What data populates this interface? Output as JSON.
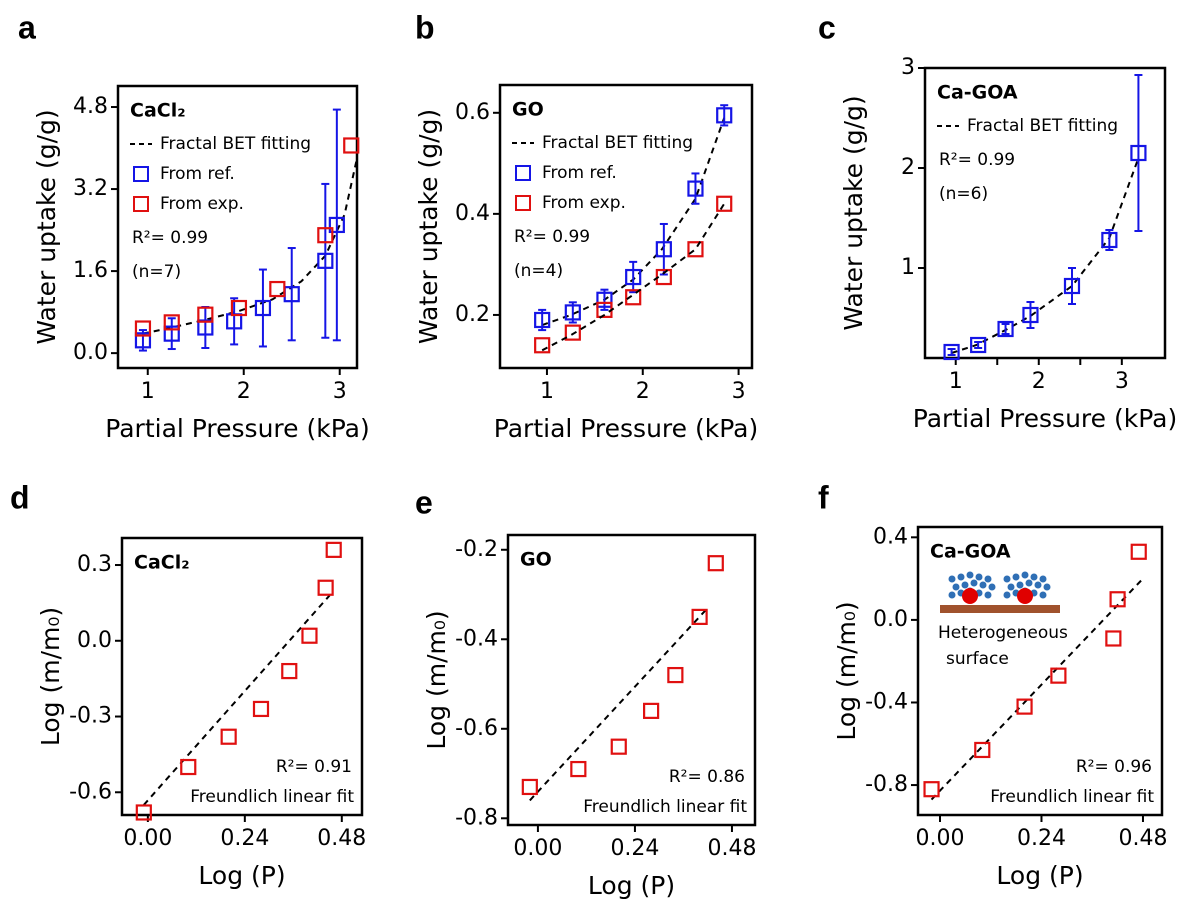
{
  "chart_data": [
    {
      "type": "scatter",
      "panel": "a",
      "title": "CaCl₂",
      "xlabel": "Partial Pressure (kPa)",
      "ylabel": "Water uptake (g/g)",
      "xlim": [
        0.69,
        3.18
      ],
      "ylim": [
        -0.29,
        5.21
      ],
      "xticks": [
        1,
        2,
        3
      ],
      "yticks": [
        {
          "value": 0,
          "label": "0.0"
        },
        1.6,
        3.2,
        4.8
      ],
      "series": [
        {
          "name": "Fractal BET fitting",
          "style": "dashed",
          "color": "#000000",
          "x": [
            0.95,
            1.25,
            1.6,
            1.95,
            2.3,
            2.6,
            2.85,
            3.05,
            3.18
          ],
          "values": [
            0.38,
            0.5,
            0.65,
            0.82,
            1.05,
            1.4,
            1.9,
            2.7,
            3.8
          ]
        },
        {
          "name": "From ref.",
          "style": "marker",
          "color": "#1515e6",
          "x": [
            0.95,
            1.25,
            1.6,
            1.9,
            2.2,
            2.5,
            2.85,
            2.97
          ],
          "values": [
            0.25,
            0.38,
            0.5,
            0.62,
            0.88,
            1.15,
            1.8,
            2.5
          ],
          "errors": [
            0.2,
            0.3,
            0.4,
            0.45,
            0.75,
            0.9,
            1.5,
            2.25
          ]
        },
        {
          "name": "From exp.",
          "style": "marker",
          "color": "#e01010",
          "x": [
            0.95,
            1.25,
            1.6,
            1.95,
            2.35,
            2.85,
            3.12
          ],
          "values": [
            0.48,
            0.6,
            0.75,
            0.88,
            1.25,
            2.3,
            4.05
          ]
        }
      ],
      "annotations": [
        "R²= 0.99",
        "(n=7)"
      ]
    },
    {
      "type": "scatter",
      "panel": "b",
      "title": "GO",
      "xlabel": "Partial Pressure (kPa)",
      "ylabel": "Water uptake (g/g)",
      "xlim": [
        0.51,
        3.14
      ],
      "ylim": [
        0.095,
        0.655
      ],
      "xticks": [
        1,
        2,
        3
      ],
      "yticks": [
        0.2,
        0.4,
        0.6
      ],
      "series": [
        {
          "name": "Fractal BET fitting",
          "style": "dashed",
          "color": "#000000",
          "x": [
            0.95,
            1.25,
            1.6,
            1.9,
            2.2,
            2.55,
            2.85
          ],
          "values": [
            0.18,
            0.2,
            0.23,
            0.27,
            0.33,
            0.43,
            0.59
          ]
        },
        {
          "name": "From ref.",
          "style": "marker",
          "color": "#1515e6",
          "x": [
            0.95,
            1.27,
            1.6,
            1.9,
            2.22,
            2.55,
            2.85
          ],
          "values": [
            0.19,
            0.205,
            0.23,
            0.275,
            0.33,
            0.45,
            0.595
          ],
          "errors": [
            0.02,
            0.02,
            0.02,
            0.03,
            0.05,
            0.03,
            0.02
          ]
        },
        {
          "name": "From exp.",
          "style": "marker",
          "color": "#e01010",
          "x": [
            0.95,
            1.27,
            1.6,
            1.9,
            2.22,
            2.55,
            2.85
          ],
          "values": [
            0.14,
            0.165,
            0.21,
            0.235,
            0.275,
            0.33,
            0.42
          ]
        },
        {
          "style": "dashed",
          "color": "#000000",
          "x": [
            0.95,
            1.25,
            1.6,
            1.9,
            2.2,
            2.55,
            2.85
          ],
          "values": [
            0.13,
            0.16,
            0.2,
            0.24,
            0.28,
            0.33,
            0.42
          ]
        }
      ],
      "annotations": [
        "R²= 0.99",
        "(n=4)"
      ]
    },
    {
      "type": "scatter",
      "panel": "c",
      "title": "Ca-GOA",
      "xlabel": "Partial Pressure (kPa)",
      "ylabel": "Water uptake (g/g)",
      "xlim": [
        0.63,
        3.52
      ],
      "ylim": [
        0.1,
        3.0
      ],
      "xticks": [
        1,
        1.5,
        2,
        2.5,
        3
      ],
      "xticklabels_shown": [
        true,
        false,
        true,
        false,
        true
      ],
      "yticks": [
        1,
        2,
        3
      ],
      "series": [
        {
          "name": "Fractal BET fitting",
          "style": "dashed",
          "color": "#000000",
          "x": [
            0.95,
            1.25,
            1.6,
            1.9,
            2.4,
            2.85,
            3.2
          ],
          "values": [
            0.15,
            0.23,
            0.38,
            0.52,
            0.82,
            1.3,
            2.1
          ]
        },
        {
          "style": "marker",
          "color": "#1515e6",
          "x": [
            0.95,
            1.27,
            1.6,
            1.9,
            2.4,
            2.85,
            3.2
          ],
          "values": [
            0.16,
            0.23,
            0.39,
            0.53,
            0.82,
            1.28,
            2.15
          ],
          "errors": [
            0.03,
            0.03,
            0.05,
            0.13,
            0.18,
            0.1,
            0.78
          ]
        }
      ],
      "annotations": [
        "R²= 0.99",
        "(n=6)"
      ]
    },
    {
      "type": "scatter",
      "panel": "d",
      "title": "CaCl₂",
      "xlabel": "Log (P)",
      "ylabel": "Log (m/m₀)",
      "xlim": [
        -0.064,
        0.53
      ],
      "ylim": [
        -0.69,
        0.407
      ],
      "xticks": [
        {
          "value": 0,
          "label": "0.00"
        },
        0.24,
        0.48
      ],
      "yticks": [
        -0.6,
        -0.3,
        {
          "value": 0,
          "label": "0.0"
        },
        0.3
      ],
      "series": [
        {
          "name": "Freundlich linear fit",
          "style": "dashed",
          "color": "#000000",
          "x": [
            -0.01,
            0.45
          ],
          "values": [
            -0.65,
            0.18
          ]
        },
        {
          "style": "marker",
          "color": "#e01010",
          "x": [
            -0.01,
            0.1,
            0.2,
            0.28,
            0.35,
            0.4,
            0.44,
            0.46
          ],
          "values": [
            -0.68,
            -0.5,
            -0.38,
            -0.27,
            -0.12,
            0.02,
            0.21,
            0.36
          ]
        }
      ],
      "annotations": [
        "R²= 0.91"
      ]
    },
    {
      "type": "scatter",
      "panel": "e",
      "title": "GO",
      "xlabel": "Log (P)",
      "ylabel": "Log (m/m₀)",
      "xlim": [
        -0.074,
        0.537
      ],
      "ylim": [
        -0.815,
        -0.167
      ],
      "xticks": [
        {
          "value": 0,
          "label": "0.00"
        },
        0.24,
        0.48
      ],
      "yticks": [
        -0.8,
        -0.6,
        -0.4,
        -0.2
      ],
      "series": [
        {
          "name": "Freundlich linear fit",
          "style": "dashed",
          "color": "#000000",
          "x": [
            -0.02,
            0.42
          ],
          "values": [
            -0.76,
            -0.33
          ]
        },
        {
          "style": "marker",
          "color": "#e01010",
          "x": [
            -0.02,
            0.1,
            0.2,
            0.28,
            0.34,
            0.4,
            0.44
          ],
          "values": [
            -0.73,
            -0.69,
            -0.64,
            -0.56,
            -0.48,
            -0.35,
            -0.23
          ]
        }
      ],
      "annotations": [
        "R²= 0.86"
      ]
    },
    {
      "type": "scatter",
      "panel": "f",
      "title": "Ca-GOA",
      "xlabel": "Log (P)",
      "ylabel": "Log (m/m₀)",
      "xlim": [
        -0.052,
        0.525
      ],
      "ylim": [
        -0.945,
        0.45
      ],
      "xticks": [
        {
          "value": 0,
          "label": "0.00"
        },
        0.24,
        0.48
      ],
      "yticks": [
        -0.8,
        -0.4,
        {
          "value": 0,
          "label": "0.0"
        },
        0.4
      ],
      "series": [
        {
          "name": "Freundlich linear fit",
          "style": "dashed",
          "color": "#000000",
          "x": [
            -0.02,
            0.48
          ],
          "values": [
            -0.87,
            0.2
          ]
        },
        {
          "style": "marker",
          "color": "#e01010",
          "x": [
            -0.02,
            0.1,
            0.2,
            0.28,
            0.41,
            0.42,
            0.47
          ],
          "values": [
            -0.82,
            -0.63,
            -0.42,
            -0.27,
            -0.09,
            0.1,
            0.33
          ]
        }
      ],
      "annotations": [
        "R²= 0.96"
      ],
      "inset_label": [
        "Heterogeneous",
        "surface"
      ]
    }
  ]
}
